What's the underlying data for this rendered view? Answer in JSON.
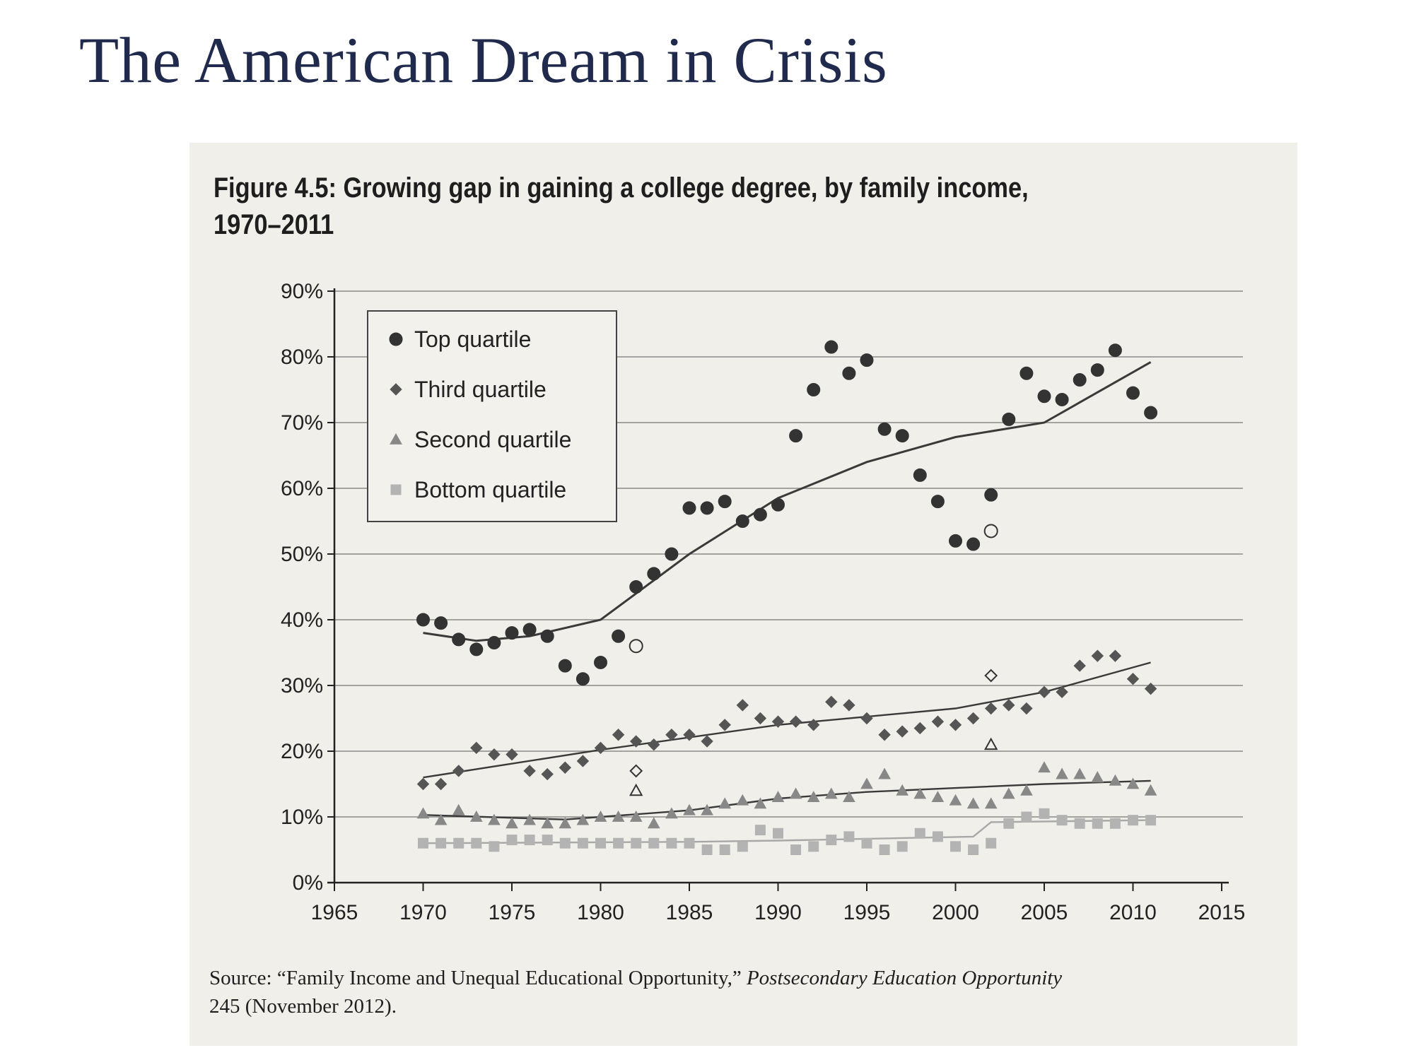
{
  "slide": {
    "title": "The American Dream in Crisis"
  },
  "figure": {
    "title": "Figure 4.5: Growing gap in gaining a college degree, by family income, 1970–2011",
    "source_prefix": "Source: “Family Income and Unequal Educational Opportunity,”",
    "source_publication": "Postsecondary Education Opportunity",
    "source_suffix": "245 (November 2012)."
  },
  "chart_data": {
    "type": "scatter",
    "title": "Figure 4.5: Growing gap in gaining a college degree, by family income, 1970–2011",
    "xlabel": "",
    "ylabel": "",
    "xlim": [
      1965,
      2015
    ],
    "ylim": [
      0,
      90
    ],
    "x_ticks": [
      "1965",
      "1970",
      "1975",
      "1980",
      "1985",
      "1990",
      "1995",
      "2000",
      "2005",
      "2010",
      "2015"
    ],
    "y_ticks": [
      "0%",
      "10%",
      "20%",
      "30%",
      "40%",
      "50%",
      "60%",
      "70%",
      "80%",
      "90%"
    ],
    "grid": "horizontal",
    "legend_position": "top-left",
    "series": [
      {
        "name": "Top quartile",
        "marker": "circle",
        "color": "#333333",
        "x": [
          1970,
          1971,
          1972,
          1973,
          1974,
          1975,
          1976,
          1977,
          1978,
          1979,
          1980,
          1981,
          1982,
          1983,
          1984,
          1985,
          1986,
          1987,
          1988,
          1989,
          1990,
          1991,
          1992,
          1993,
          1994,
          1995,
          1996,
          1997,
          1998,
          1999,
          2000,
          2001,
          2002,
          2003,
          2004,
          2005,
          2006,
          2007,
          2008,
          2009,
          2010,
          2011
        ],
        "y": [
          40,
          39.5,
          37,
          35.5,
          36.5,
          38,
          38.5,
          37.5,
          33,
          31,
          33.5,
          37.5,
          45,
          47,
          50,
          57,
          57,
          58,
          55,
          56,
          57.5,
          68,
          75,
          81.5,
          77.5,
          79.5,
          69,
          68,
          62,
          58,
          52,
          51.5,
          59,
          70.5,
          77.5,
          74,
          73.5,
          76.5,
          78,
          81,
          74.5,
          71.5
        ],
        "hollow_points": [
          {
            "x": 1982,
            "y": 36
          },
          {
            "x": 2002,
            "y": 53.5
          }
        ],
        "trend": {
          "x": [
            1970,
            1973,
            1976,
            1980,
            1985,
            1990,
            1995,
            2000,
            2005,
            2011
          ],
          "y": [
            38,
            36.8,
            37.5,
            40,
            50,
            58.5,
            64,
            67.8,
            70,
            79.2
          ]
        }
      },
      {
        "name": "Third quartile",
        "marker": "diamond",
        "color": "#555555",
        "x": [
          1970,
          1971,
          1972,
          1973,
          1974,
          1975,
          1976,
          1977,
          1978,
          1979,
          1980,
          1981,
          1982,
          1983,
          1984,
          1985,
          1986,
          1987,
          1988,
          1989,
          1990,
          1991,
          1992,
          1993,
          1994,
          1995,
          1996,
          1997,
          1998,
          1999,
          2000,
          2001,
          2002,
          2003,
          2004,
          2005,
          2006,
          2007,
          2008,
          2009,
          2010,
          2011
        ],
        "y": [
          15,
          15,
          17,
          20.5,
          19.5,
          19.5,
          17,
          16.5,
          17.5,
          18.5,
          20.5,
          22.5,
          21.5,
          21,
          22.5,
          22.5,
          21.5,
          24,
          27,
          25,
          24.5,
          24.5,
          24,
          27.5,
          27,
          25,
          22.5,
          23,
          23.5,
          24.5,
          24,
          25,
          26.5,
          27,
          26.5,
          29,
          29,
          33,
          34.5,
          34.5,
          31,
          29.5
        ],
        "hollow_points": [
          {
            "x": 1982,
            "y": 17
          },
          {
            "x": 2002,
            "y": 31.5
          }
        ],
        "trend": {
          "x": [
            1970,
            1980,
            1990,
            2000,
            2005,
            2011
          ],
          "y": [
            16,
            20.2,
            24,
            26.5,
            29,
            33.5
          ]
        }
      },
      {
        "name": "Second quartile",
        "marker": "triangle",
        "color": "#888888",
        "x": [
          1970,
          1971,
          1972,
          1973,
          1974,
          1975,
          1976,
          1977,
          1978,
          1979,
          1980,
          1981,
          1982,
          1983,
          1984,
          1985,
          1986,
          1987,
          1988,
          1989,
          1990,
          1991,
          1992,
          1993,
          1994,
          1995,
          1996,
          1997,
          1998,
          1999,
          2000,
          2001,
          2002,
          2003,
          2004,
          2005,
          2006,
          2007,
          2008,
          2009,
          2010,
          2011
        ],
        "y": [
          10.5,
          9.5,
          11,
          10,
          9.5,
          9,
          9.5,
          9,
          9,
          9.5,
          10,
          10,
          10,
          9,
          10.5,
          11,
          11,
          12,
          12.5,
          12,
          13,
          13.5,
          13,
          13.5,
          13,
          15,
          16.5,
          14,
          13.5,
          13,
          12.5,
          12,
          12,
          13.5,
          14,
          17.5,
          16.5,
          16.5,
          16,
          15.5,
          15,
          14
        ],
        "hollow_points": [
          {
            "x": 1982,
            "y": 14
          },
          {
            "x": 2002,
            "y": 21
          }
        ],
        "trend": {
          "x": [
            1970,
            1978,
            1985,
            1990,
            1995,
            2000,
            2005,
            2011
          ],
          "y": [
            10.3,
            9.6,
            11,
            12.8,
            13.8,
            14.4,
            15,
            15.5
          ]
        }
      },
      {
        "name": "Bottom quartile",
        "marker": "square",
        "color": "#b3b3b3",
        "x": [
          1970,
          1971,
          1972,
          1973,
          1974,
          1975,
          1976,
          1977,
          1978,
          1979,
          1980,
          1981,
          1982,
          1983,
          1984,
          1985,
          1986,
          1987,
          1988,
          1989,
          1990,
          1991,
          1992,
          1993,
          1994,
          1995,
          1996,
          1997,
          1998,
          1999,
          2000,
          2001,
          2002,
          2003,
          2004,
          2005,
          2006,
          2007,
          2008,
          2009,
          2010,
          2011
        ],
        "y": [
          6,
          6,
          6,
          6,
          5.5,
          6.5,
          6.5,
          6.5,
          6,
          6,
          6,
          6,
          6,
          6,
          6,
          6,
          5,
          5,
          5.5,
          8,
          7.5,
          5,
          5.5,
          6.5,
          7,
          6,
          5,
          5.5,
          7.5,
          7,
          5.5,
          5,
          6,
          9,
          10,
          10.5,
          9.5,
          9,
          9,
          9,
          9.5,
          9.5
        ],
        "hollow_points": [],
        "trend": {
          "x": [
            1970,
            1985,
            1990,
            2001,
            2002,
            2011
          ],
          "y": [
            6,
            6.2,
            6.4,
            7,
            9.2,
            9.5
          ]
        }
      }
    ]
  }
}
